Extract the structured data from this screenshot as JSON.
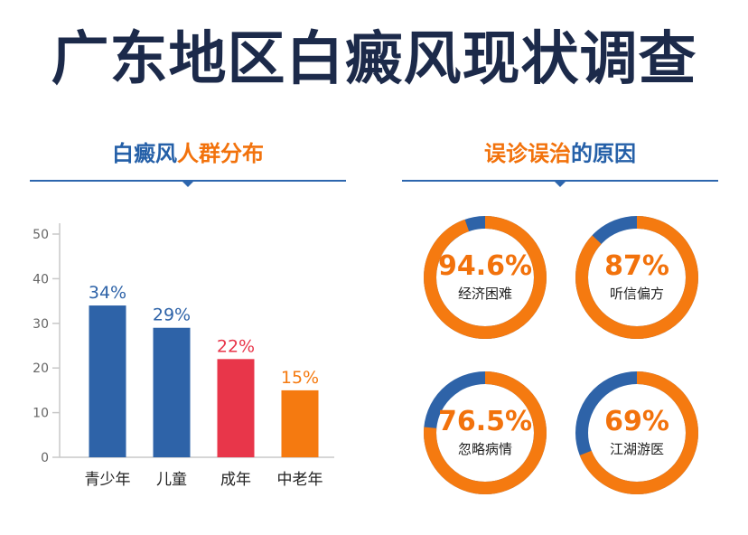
{
  "title": "广东地区白癜风现状调查",
  "left_section": {
    "title_part1": "白癜风",
    "title_part2": "人群分布"
  },
  "right_section": {
    "title_part1": "误诊误治",
    "title_part2": "的原因"
  },
  "chart_data": [
    {
      "type": "bar",
      "categories": [
        "青少年",
        "儿童",
        "成年",
        "中老年"
      ],
      "values": [
        34,
        29,
        22,
        15
      ],
      "data_labels": [
        "34%",
        "29%",
        "22%",
        "15%"
      ],
      "colors": [
        "#2e63a8",
        "#2e63a8",
        "#e8364a",
        "#f57a10"
      ],
      "label_colors": [
        "#2e63a8",
        "#2e63a8",
        "#e8364a",
        "#f57a10"
      ],
      "ylim": [
        0,
        50
      ],
      "yticks": [
        0,
        10,
        20,
        30,
        40,
        50
      ],
      "title": "",
      "xlabel": "",
      "ylabel": ""
    },
    {
      "type": "pie",
      "charts": [
        {
          "value": 94.6,
          "label": "94.6%",
          "name": "经济困难"
        },
        {
          "value": 87,
          "label": "87%",
          "name": "听信偏方"
        },
        {
          "value": 76.5,
          "label": "76.5%",
          "name": "忽略病情"
        },
        {
          "value": 69,
          "label": "69%",
          "name": "江湖游医"
        }
      ],
      "colors": {
        "share": "#f57a10",
        "rest": "#2e63a8"
      }
    }
  ]
}
